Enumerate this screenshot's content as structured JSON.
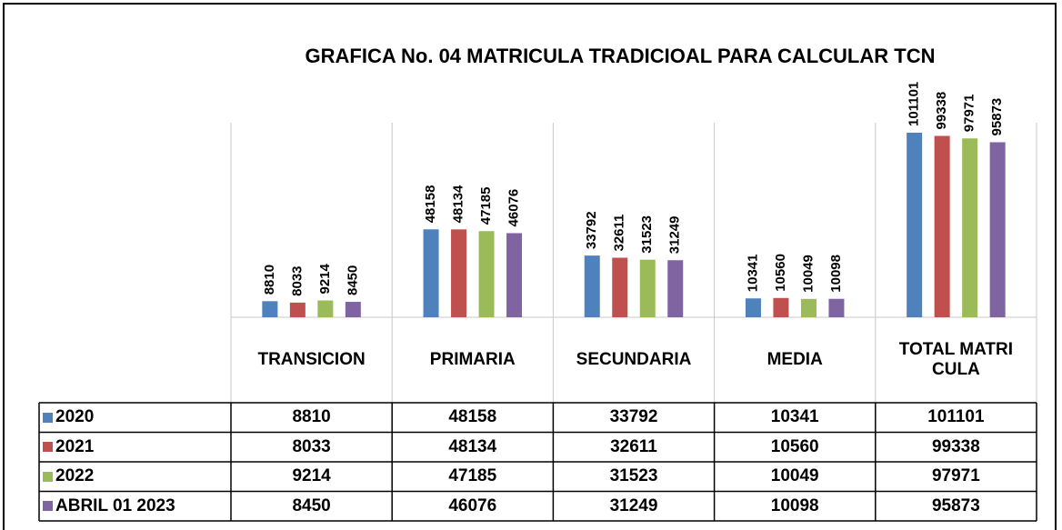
{
  "chart_data": {
    "type": "bar",
    "title": "GRAFICA No. 04 MATRICULA TRADICIOAL PARA CALCULAR TCN",
    "categories": [
      "TRANSICION",
      "PRIMARIA",
      "SECUNDARIA",
      "MEDIA",
      "TOTAL MATRICULA"
    ],
    "series": [
      {
        "name": "2020",
        "color": "#4f81bd",
        "values": [
          8810,
          48158,
          33792,
          10341,
          101101
        ]
      },
      {
        "name": "2021",
        "color": "#c0504d",
        "values": [
          8033,
          48134,
          32611,
          10560,
          99338
        ]
      },
      {
        "name": "2022",
        "color": "#9bbb59",
        "values": [
          9214,
          47185,
          31523,
          10049,
          97971
        ]
      },
      {
        "name": "ABRIL 01 2023",
        "color": "#8064a2",
        "values": [
          8450,
          46076,
          31249,
          10098,
          95873
        ]
      }
    ],
    "ylim": [
      0,
      120000
    ]
  }
}
